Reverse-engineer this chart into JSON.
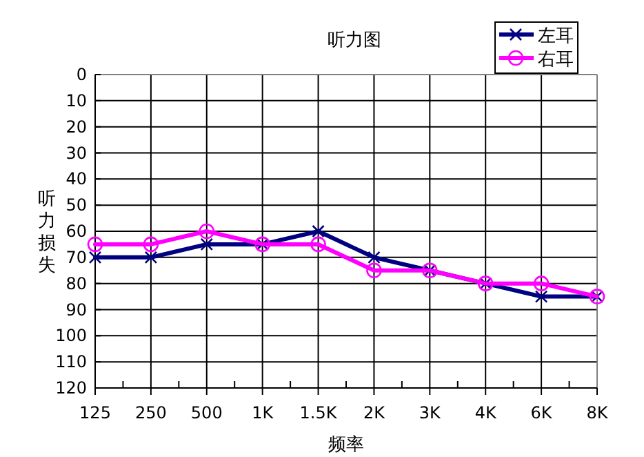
{
  "chart_data": {
    "type": "line",
    "title": "听力图",
    "xlabel": "频率",
    "ylabel": "听力损失",
    "categories": [
      "125",
      "250",
      "500",
      "1K",
      "1.5K",
      "2K",
      "3K",
      "4K",
      "6K",
      "8K"
    ],
    "ylim": [
      120,
      0
    ],
    "yticks": [
      0,
      10,
      20,
      30,
      40,
      50,
      60,
      70,
      80,
      90,
      100,
      110,
      120
    ],
    "grid": true,
    "legend": "top right",
    "series": [
      {
        "name": "左耳",
        "color": "#000080",
        "marker": "cross",
        "values": [
          70,
          70,
          65,
          65,
          60,
          70,
          75,
          80,
          85,
          85
        ]
      },
      {
        "name": "右耳",
        "color": "#ff00ff",
        "marker": "circle",
        "values": [
          65,
          65,
          60,
          65,
          65,
          75,
          75,
          80,
          80,
          85
        ]
      }
    ]
  }
}
